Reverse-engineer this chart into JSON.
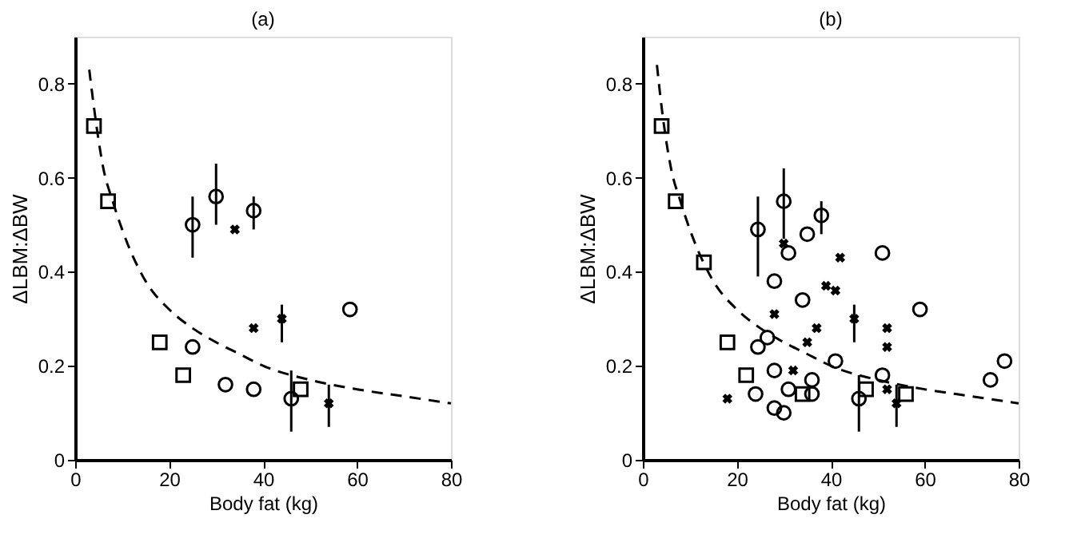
{
  "chart_data": [
    {
      "type": "scatter",
      "title": "(a)",
      "xlabel": "Body fat (kg)",
      "ylabel": "ΔLBM:ΔBW",
      "xlim": [
        0,
        80
      ],
      "ylim": [
        0,
        0.9
      ],
      "xticks": [
        0,
        20,
        40,
        60,
        80
      ],
      "yticks": [
        0,
        0.2,
        0.4,
        0.6,
        0.8
      ],
      "grid": false,
      "series": [
        {
          "type": "scatter",
          "marker": "square",
          "color": "#000000",
          "x": [
            4,
            7,
            18,
            23,
            48
          ],
          "values": [
            0.71,
            0.55,
            0.25,
            0.18,
            0.15
          ]
        },
        {
          "type": "scatter",
          "marker": "circle",
          "color": "#000000",
          "x": [
            25,
            32,
            38,
            46
          ],
          "values": [
            0.24,
            0.16,
            0.15,
            0.13
          ],
          "errors": [
            null,
            null,
            null,
            [
              0.06,
              0.19
            ]
          ]
        },
        {
          "type": "scatter",
          "marker": "circle",
          "color": "#000000",
          "x": [
            25,
            30,
            38,
            58.5
          ],
          "values": [
            0.5,
            0.56,
            0.53,
            0.32
          ],
          "errors": [
            [
              0.43,
              0.56
            ],
            [
              0.5,
              0.63
            ],
            [
              0.49,
              0.56
            ],
            null
          ]
        },
        {
          "type": "scatter",
          "marker": "cross",
          "color": "#000000",
          "x": [
            34,
            38,
            44,
            54
          ],
          "values": [
            0.49,
            0.28,
            0.3,
            0.12
          ],
          "errors": [
            null,
            null,
            [
              0.25,
              0.33
            ],
            [
              0.07,
              0.16
            ]
          ]
        },
        {
          "type": "line",
          "line_style": "dashed",
          "color": "#000000",
          "x": [
            3,
            4,
            6,
            8,
            10,
            15,
            20,
            25,
            30,
            35,
            40,
            50,
            60,
            70,
            80
          ],
          "values": [
            0.83,
            0.75,
            0.62,
            0.55,
            0.49,
            0.38,
            0.32,
            0.28,
            0.25,
            0.225,
            0.2,
            0.17,
            0.15,
            0.135,
            0.12
          ]
        }
      ]
    },
    {
      "type": "scatter",
      "title": "(b)",
      "xlabel": "Body fat (kg)",
      "ylabel": "ΔLBM:ΔBW",
      "xlim": [
        0,
        80
      ],
      "ylim": [
        0,
        0.9
      ],
      "xticks": [
        0,
        20,
        40,
        60,
        80
      ],
      "yticks": [
        0,
        0.2,
        0.4,
        0.6,
        0.8
      ],
      "grid": false,
      "series": [
        {
          "type": "scatter",
          "marker": "square",
          "color": "#000000",
          "x": [
            4,
            7,
            13,
            18,
            22,
            34,
            47.5,
            56
          ],
          "values": [
            0.71,
            0.55,
            0.42,
            0.25,
            0.18,
            0.14,
            0.15,
            0.14
          ]
        },
        {
          "type": "scatter",
          "marker": "circle",
          "color": "#000000",
          "x": [
            24.5,
            26.5,
            34,
            41,
            28,
            24,
            28,
            30,
            36,
            46
          ],
          "values": [
            0.24,
            0.26,
            0.34,
            0.21,
            0.19,
            0.14,
            0.11,
            0.1,
            0.14,
            0.13
          ],
          "errors": [
            null,
            null,
            null,
            null,
            null,
            null,
            null,
            null,
            null,
            [
              0.06,
              0.18
            ]
          ]
        },
        {
          "type": "scatter",
          "marker": "circle",
          "color": "#000000",
          "x": [
            30,
            38,
            24.5,
            35,
            31,
            28,
            51,
            59,
            36,
            31,
            51,
            74,
            77
          ],
          "values": [
            0.55,
            0.52,
            0.49,
            0.48,
            0.44,
            0.38,
            0.44,
            0.32,
            0.17,
            0.15,
            0.18,
            0.17,
            0.21
          ],
          "errors": [
            [
              0.47,
              0.62
            ],
            [
              0.48,
              0.55
            ],
            [
              0.39,
              0.56
            ],
            null,
            null,
            null,
            null,
            null,
            null,
            null,
            null,
            null,
            null
          ]
        },
        {
          "type": "scatter",
          "marker": "cross",
          "color": "#000000",
          "x": [
            18,
            30,
            28,
            39,
            41,
            42,
            35,
            37,
            32,
            52,
            52,
            52,
            45,
            54
          ],
          "values": [
            0.13,
            0.46,
            0.31,
            0.37,
            0.36,
            0.43,
            0.25,
            0.28,
            0.19,
            0.28,
            0.24,
            0.15,
            0.3,
            0.12
          ],
          "errors": [
            null,
            null,
            null,
            null,
            null,
            null,
            null,
            null,
            null,
            null,
            null,
            null,
            [
              0.25,
              0.33
            ],
            [
              0.07,
              0.16
            ]
          ]
        },
        {
          "type": "line",
          "line_style": "dashed",
          "color": "#000000",
          "x": [
            3,
            4,
            6,
            8,
            10,
            15,
            20,
            25,
            30,
            35,
            40,
            50,
            60,
            70,
            80
          ],
          "values": [
            0.84,
            0.75,
            0.62,
            0.55,
            0.49,
            0.38,
            0.32,
            0.28,
            0.25,
            0.225,
            0.2,
            0.17,
            0.15,
            0.135,
            0.12
          ]
        }
      ]
    }
  ]
}
